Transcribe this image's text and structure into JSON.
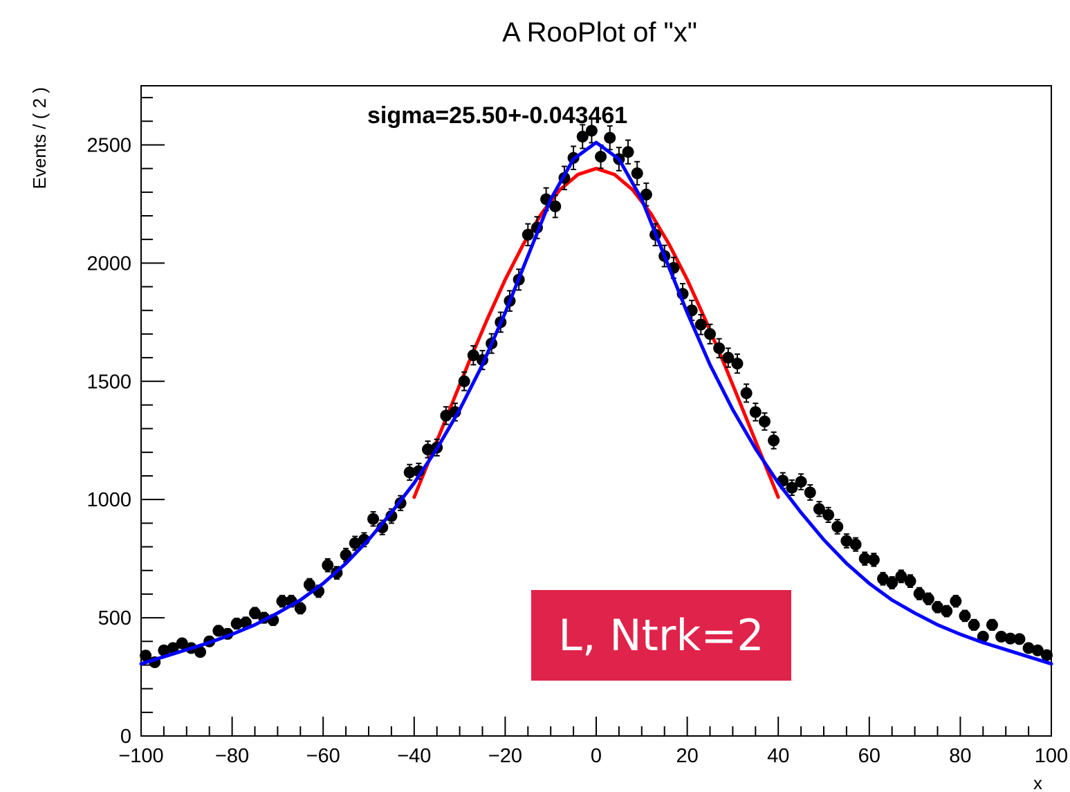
{
  "chart_data": {
    "type": "scatter",
    "title": "A RooPlot of \"x\"",
    "xlabel": "x",
    "ylabel": "Events / ( 2 )",
    "xlim": [
      -100,
      100
    ],
    "ylim": [
      0,
      2750
    ],
    "x_ticks": [
      -100,
      -80,
      -60,
      -40,
      -20,
      0,
      20,
      40,
      60,
      80,
      100
    ],
    "x_tick_labels": [
      "−100",
      "−80",
      "−60",
      "−40",
      "−20",
      "0",
      "20",
      "40",
      "60",
      "80",
      "100"
    ],
    "y_ticks": [
      0,
      500,
      1000,
      1500,
      2000,
      2500
    ],
    "y_tick_labels": [
      "0",
      "500",
      "1000",
      "1500",
      "2000",
      "2500"
    ],
    "annotation": "sigma=25.50+-0.043461",
    "badge": "L, Ntrk=2",
    "badge_color": "#e0234a",
    "data_color": "#000000",
    "grid": false,
    "series": [
      {
        "kind": "points",
        "color": "#000000",
        "x": [
          -99,
          -97,
          -95,
          -93,
          -91,
          -89,
          -87,
          -85,
          -83,
          -81,
          -79,
          -77,
          -75,
          -73,
          -71,
          -69,
          -67,
          -65,
          -63,
          -61,
          -59,
          -57,
          -55,
          -53,
          -51,
          -49,
          -47,
          -45,
          -43,
          -41,
          -39,
          -37,
          -35,
          -33,
          -31,
          -29,
          -27,
          -25,
          -23,
          -21,
          -19,
          -17,
          -15,
          -13,
          -11,
          -9,
          -7,
          -5,
          -3,
          -1,
          1,
          3,
          5,
          7,
          9,
          11,
          13,
          15,
          17,
          19,
          21,
          23,
          25,
          27,
          29,
          31,
          33,
          35,
          37,
          39,
          41,
          43,
          45,
          47,
          49,
          51,
          53,
          55,
          57,
          59,
          61,
          63,
          65,
          67,
          69,
          71,
          73,
          75,
          77,
          79,
          81,
          83,
          85,
          87,
          89,
          91,
          93,
          95,
          97,
          99
        ],
        "y": [
          340,
          312,
          362,
          372,
          392,
          372,
          355,
          400,
          445,
          432,
          475,
          480,
          520,
          500,
          490,
          570,
          570,
          540,
          640,
          612,
          722,
          690,
          765,
          815,
          830,
          918,
          882,
          930,
          985,
          1115,
          1120,
          1212,
          1220,
          1355,
          1370,
          1500,
          1610,
          1590,
          1660,
          1750,
          1840,
          1930,
          2120,
          2150,
          2270,
          2240,
          2360,
          2445,
          2535,
          2560,
          2450,
          2530,
          2440,
          2470,
          2380,
          2290,
          2120,
          2030,
          1980,
          1870,
          1800,
          1740,
          1700,
          1640,
          1600,
          1575,
          1450,
          1370,
          1330,
          1250,
          1080,
          1050,
          1075,
          1030,
          960,
          935,
          885,
          825,
          810,
          750,
          745,
          665,
          648,
          675,
          655,
          602,
          580,
          545,
          528,
          570,
          508,
          470,
          420,
          470,
          420,
          412,
          410,
          372,
          362,
          342
        ],
        "error": [
          19,
          18,
          19,
          19,
          20,
          19,
          19,
          20,
          21,
          21,
          22,
          22,
          23,
          22,
          22,
          24,
          24,
          23,
          25,
          25,
          27,
          26,
          28,
          29,
          29,
          30,
          30,
          30,
          31,
          33,
          33,
          35,
          35,
          37,
          37,
          39,
          40,
          40,
          41,
          42,
          43,
          44,
          46,
          46,
          48,
          47,
          49,
          49,
          50,
          51,
          49,
          50,
          49,
          50,
          49,
          48,
          46,
          45,
          44,
          43,
          42,
          42,
          41,
          40,
          40,
          40,
          38,
          37,
          36,
          35,
          33,
          32,
          33,
          32,
          31,
          31,
          30,
          29,
          28,
          27,
          27,
          26,
          25,
          26,
          26,
          25,
          24,
          23,
          23,
          24,
          23,
          22,
          20,
          22,
          20,
          20,
          20,
          19,
          19,
          18
        ]
      },
      {
        "kind": "curve",
        "color": "#ff0000",
        "x": [
          -40,
          -36,
          -32,
          -28,
          -24,
          -20,
          -16,
          -12,
          -8,
          -4,
          0,
          4,
          8,
          12,
          16,
          20,
          24,
          28,
          32,
          36,
          40
        ],
        "y": [
          1010,
          1200,
          1390,
          1580,
          1760,
          1930,
          2080,
          2210,
          2310,
          2375,
          2400,
          2375,
          2310,
          2210,
          2080,
          1930,
          1760,
          1580,
          1390,
          1200,
          1010
        ]
      },
      {
        "kind": "curve",
        "color": "#0000ff",
        "x": [
          -100,
          -95,
          -90,
          -85,
          -80,
          -75,
          -70,
          -65,
          -60,
          -55,
          -50,
          -45,
          -40,
          -35,
          -30,
          -25,
          -20,
          -15,
          -10,
          -5,
          0,
          5,
          10,
          15,
          20,
          25,
          30,
          35,
          40,
          45,
          50,
          55,
          60,
          65,
          70,
          75,
          80,
          85,
          90,
          95,
          100
        ],
        "y": [
          305,
          335,
          365,
          395,
          430,
          470,
          520,
          575,
          645,
          730,
          830,
          945,
          1070,
          1215,
          1380,
          1570,
          1790,
          2030,
          2270,
          2440,
          2510,
          2440,
          2270,
          2030,
          1790,
          1570,
          1380,
          1215,
          1070,
          945,
          830,
          730,
          645,
          575,
          520,
          470,
          430,
          395,
          365,
          335,
          305
        ]
      }
    ]
  }
}
